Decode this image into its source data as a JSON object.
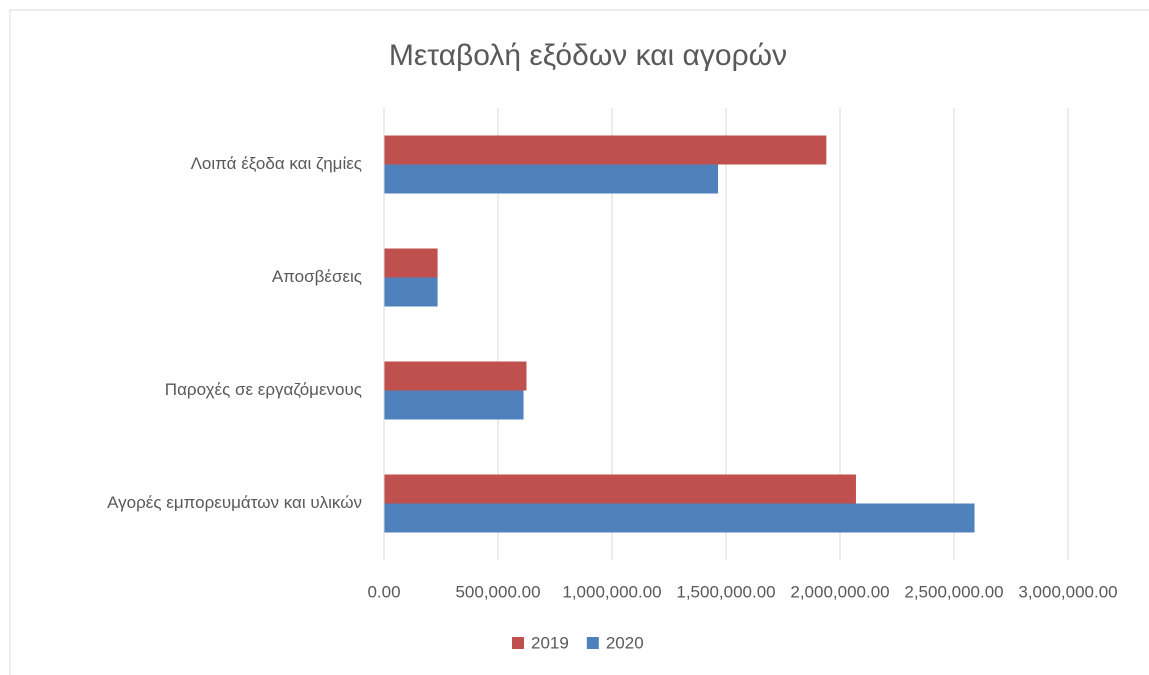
{
  "chart_data": {
    "type": "hbar",
    "title": "Μεταβολή εξόδων και αγορών",
    "categories": [
      "Λοιπά έξοδα και ζημίες",
      "Αποσβέσεις",
      "Παροχές σε εργαζόμενους",
      "Αγορές εμπορευμάτων και υλικών"
    ],
    "series": [
      {
        "name": "2019",
        "color": "#c0504d",
        "values": [
          1940000,
          235000,
          625000,
          2070000
        ]
      },
      {
        "name": "2020",
        "color": "#4f81bd",
        "values": [
          1465000,
          235000,
          612000,
          2590000
        ]
      }
    ],
    "xlim": [
      0,
      3000000
    ],
    "xticks": [
      {
        "value": 0,
        "label": "0.00"
      },
      {
        "value": 500000,
        "label": "500,000.00"
      },
      {
        "value": 1000000,
        "label": "1,000,000.00"
      },
      {
        "value": 1500000,
        "label": "1,500,000.00"
      },
      {
        "value": 2000000,
        "label": "2,000,000.00"
      },
      {
        "value": 2500000,
        "label": "2,500,000.00"
      },
      {
        "value": 3000000,
        "label": "3,000,000.00"
      }
    ],
    "grid": true,
    "legend": "bottom"
  }
}
